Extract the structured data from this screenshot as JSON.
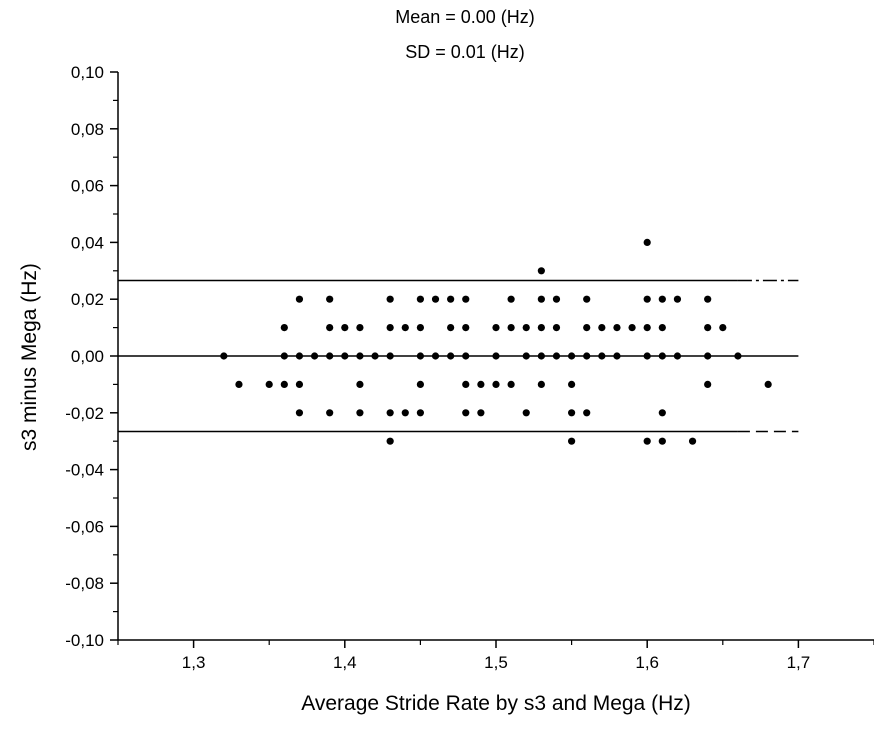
{
  "chart_data": {
    "type": "scatter",
    "title": "",
    "annotations": [
      "Mean = 0.00 (Hz)",
      "SD = 0.01 (Hz)"
    ],
    "xlabel": "Average Stride Rate by s3 and Mega (Hz)",
    "ylabel": "s3 minus Mega (Hz)",
    "xlim": [
      1.25,
      1.75
    ],
    "ylim": [
      -0.1,
      0.1
    ],
    "xticks": [
      1.3,
      1.4,
      1.5,
      1.6,
      1.7
    ],
    "xtick_labels": [
      "1,3",
      "1,4",
      "1,5",
      "1,6",
      "1,7"
    ],
    "yticks": [
      -0.1,
      -0.08,
      -0.06,
      -0.04,
      -0.02,
      0.0,
      0.02,
      0.04,
      0.06,
      0.08,
      0.1
    ],
    "ytick_labels": [
      "-0,10",
      "-0,08",
      "-0,06",
      "-0,04",
      "-0,02",
      "0,00",
      "0,02",
      "0,04",
      "0,06",
      "0,08",
      "0,10"
    ],
    "grid": false,
    "reference_lines": [
      {
        "y": 0.0266,
        "x_range": [
          1.25,
          1.66
        ],
        "dashed_range": [
          1.66,
          1.7
        ],
        "style": "dash-dot"
      },
      {
        "y": 0.0,
        "x_range": [
          1.25,
          1.7
        ],
        "style": "solid"
      },
      {
        "y": -0.0266,
        "x_range": [
          1.25,
          1.66
        ],
        "dashed_range": [
          1.66,
          1.7
        ],
        "style": "dash"
      }
    ],
    "points": [
      [
        1.32,
        0.0
      ],
      [
        1.33,
        -0.01
      ],
      [
        1.35,
        -0.01
      ],
      [
        1.36,
        0.01
      ],
      [
        1.36,
        0.0
      ],
      [
        1.36,
        -0.01
      ],
      [
        1.37,
        0.02
      ],
      [
        1.37,
        0.0
      ],
      [
        1.37,
        -0.01
      ],
      [
        1.37,
        -0.02
      ],
      [
        1.38,
        0.0
      ],
      [
        1.39,
        0.02
      ],
      [
        1.39,
        0.01
      ],
      [
        1.39,
        0.0
      ],
      [
        1.39,
        -0.02
      ],
      [
        1.4,
        0.01
      ],
      [
        1.4,
        0.0
      ],
      [
        1.41,
        0.01
      ],
      [
        1.41,
        0.0
      ],
      [
        1.41,
        -0.01
      ],
      [
        1.41,
        -0.02
      ],
      [
        1.42,
        0.0
      ],
      [
        1.43,
        0.02
      ],
      [
        1.43,
        0.01
      ],
      [
        1.43,
        0.0
      ],
      [
        1.43,
        -0.02
      ],
      [
        1.43,
        -0.03
      ],
      [
        1.44,
        0.01
      ],
      [
        1.44,
        -0.02
      ],
      [
        1.45,
        0.02
      ],
      [
        1.45,
        0.01
      ],
      [
        1.45,
        0.0
      ],
      [
        1.45,
        -0.01
      ],
      [
        1.45,
        -0.02
      ],
      [
        1.46,
        0.02
      ],
      [
        1.46,
        0.0
      ],
      [
        1.47,
        0.02
      ],
      [
        1.47,
        0.01
      ],
      [
        1.47,
        0.0
      ],
      [
        1.48,
        0.02
      ],
      [
        1.48,
        0.01
      ],
      [
        1.48,
        0.0
      ],
      [
        1.48,
        -0.01
      ],
      [
        1.48,
        -0.02
      ],
      [
        1.49,
        -0.01
      ],
      [
        1.49,
        -0.02
      ],
      [
        1.5,
        0.01
      ],
      [
        1.5,
        0.0
      ],
      [
        1.5,
        -0.01
      ],
      [
        1.51,
        0.02
      ],
      [
        1.51,
        0.01
      ],
      [
        1.51,
        -0.01
      ],
      [
        1.52,
        0.01
      ],
      [
        1.52,
        0.0
      ],
      [
        1.52,
        -0.02
      ],
      [
        1.53,
        0.03
      ],
      [
        1.53,
        0.02
      ],
      [
        1.53,
        0.01
      ],
      [
        1.53,
        0.0
      ],
      [
        1.53,
        -0.01
      ],
      [
        1.54,
        0.02
      ],
      [
        1.54,
        0.01
      ],
      [
        1.54,
        0.0
      ],
      [
        1.55,
        0.0
      ],
      [
        1.55,
        -0.01
      ],
      [
        1.55,
        -0.02
      ],
      [
        1.55,
        -0.03
      ],
      [
        1.56,
        0.02
      ],
      [
        1.56,
        0.01
      ],
      [
        1.56,
        0.0
      ],
      [
        1.56,
        -0.02
      ],
      [
        1.57,
        0.01
      ],
      [
        1.57,
        0.0
      ],
      [
        1.58,
        0.01
      ],
      [
        1.58,
        0.0
      ],
      [
        1.59,
        0.01
      ],
      [
        1.6,
        0.04
      ],
      [
        1.6,
        0.02
      ],
      [
        1.6,
        0.01
      ],
      [
        1.6,
        0.0
      ],
      [
        1.6,
        -0.03
      ],
      [
        1.61,
        0.02
      ],
      [
        1.61,
        0.01
      ],
      [
        1.61,
        0.0
      ],
      [
        1.61,
        -0.02
      ],
      [
        1.61,
        -0.03
      ],
      [
        1.62,
        0.02
      ],
      [
        1.62,
        0.0
      ],
      [
        1.63,
        -0.03
      ],
      [
        1.64,
        0.02
      ],
      [
        1.64,
        0.01
      ],
      [
        1.64,
        0.0
      ],
      [
        1.64,
        -0.01
      ],
      [
        1.65,
        0.01
      ],
      [
        1.66,
        0.0
      ],
      [
        1.68,
        -0.01
      ]
    ]
  }
}
